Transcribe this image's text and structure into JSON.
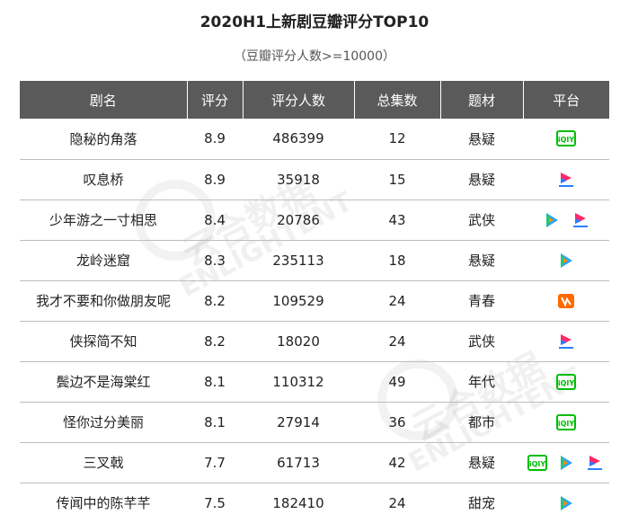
{
  "title": "2020H1上新剧豆瓣评分TOP10",
  "subtitle": "（豆瓣评分人数>=10000）",
  "watermark": {
    "cn": "云合数据",
    "en": "ENLIGHTENT"
  },
  "chart_data": {
    "type": "table",
    "columns": [
      "剧名",
      "评分",
      "评分人数",
      "总集数",
      "题材",
      "平台"
    ],
    "rows": [
      {
        "name": "隐秘的角落",
        "score": "8.9",
        "raters": "486399",
        "episodes": "12",
        "genre": "悬疑",
        "platforms": [
          "iqiyi"
        ]
      },
      {
        "name": "叹息桥",
        "score": "8.9",
        "raters": "35918",
        "episodes": "15",
        "genre": "悬疑",
        "platforms": [
          "youku"
        ]
      },
      {
        "name": "少年游之一寸相思",
        "score": "8.4",
        "raters": "20786",
        "episodes": "43",
        "genre": "武侠",
        "platforms": [
          "tencent",
          "youku"
        ]
      },
      {
        "name": "龙岭迷窟",
        "score": "8.3",
        "raters": "235113",
        "episodes": "18",
        "genre": "悬疑",
        "platforms": [
          "tencent"
        ]
      },
      {
        "name": "我才不要和你做朋友呢",
        "score": "8.2",
        "raters": "109529",
        "episodes": "24",
        "genre": "青春",
        "platforms": [
          "mango"
        ]
      },
      {
        "name": "侠探简不知",
        "score": "8.2",
        "raters": "18020",
        "episodes": "24",
        "genre": "武侠",
        "platforms": [
          "youku"
        ]
      },
      {
        "name": "鬓边不是海棠红",
        "score": "8.1",
        "raters": "110312",
        "episodes": "49",
        "genre": "年代",
        "platforms": [
          "iqiyi"
        ]
      },
      {
        "name": "怪你过分美丽",
        "score": "8.1",
        "raters": "27914",
        "episodes": "36",
        "genre": "都市",
        "platforms": [
          "iqiyi"
        ]
      },
      {
        "name": "三叉戟",
        "score": "7.7",
        "raters": "61713",
        "episodes": "42",
        "genre": "悬疑",
        "platforms": [
          "iqiyi",
          "tencent",
          "youku"
        ]
      },
      {
        "name": "传闻中的陈芊芊",
        "score": "7.5",
        "raters": "182410",
        "episodes": "24",
        "genre": "甜宠",
        "platforms": [
          "tencent"
        ]
      }
    ]
  },
  "colors": {
    "header_bg": "#5a5a5a",
    "row_divider": "#bdbdbd",
    "iqiyi": "#00be06",
    "youku_pink": "#ff2a6a",
    "youku_blue": "#2a7fff",
    "tencent_orange": "#ff8a00",
    "tencent_green": "#26c281",
    "tencent_blue": "#2aa3ff",
    "mango": "#ff6a00"
  }
}
